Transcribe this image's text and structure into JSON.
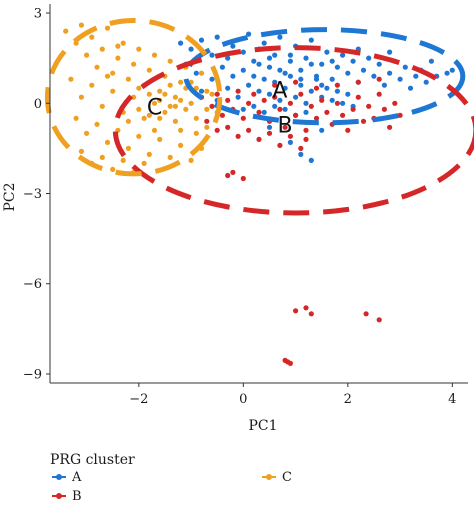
{
  "chart_data": {
    "type": "scatter",
    "xlabel": "PC1",
    "ylabel": "PC2",
    "xlim": [
      -3.7,
      4.3
    ],
    "ylim": [
      -9.3,
      3.3
    ],
    "xticks": [
      -2,
      0,
      2,
      4
    ],
    "yticks": [
      3,
      0,
      -3,
      -6,
      -9
    ],
    "xtick_labels": [
      "−2",
      "0",
      "2",
      "4"
    ],
    "ytick_labels": [
      "3",
      "0",
      "−3",
      "−6",
      "−9"
    ],
    "legend": {
      "title": "PRG cluster",
      "placement": "bottom",
      "entries": [
        {
          "label": "A",
          "color": "#1f77d4"
        },
        {
          "label": "B",
          "color": "#d62728"
        },
        {
          "label": "C",
          "color": "#f0a020"
        }
      ]
    },
    "cluster_labels": [
      {
        "text": "A",
        "x": 0.7,
        "y": 0.45
      },
      {
        "text": "B",
        "x": 0.8,
        "y": -0.7
      },
      {
        "text": "C",
        "x": -1.7,
        "y": -0.1
      }
    ],
    "series": [
      {
        "name": "A",
        "color": "#1f77d4",
        "ellipse": {
          "cx": 1.55,
          "cy": 0.9,
          "rx": 2.65,
          "ry": 1.55
        },
        "points": [
          [
            -1.2,
            2.0
          ],
          [
            -1.0,
            1.8
          ],
          [
            -0.8,
            2.1
          ],
          [
            -0.6,
            1.6
          ],
          [
            -0.5,
            2.2
          ],
          [
            -0.3,
            1.5
          ],
          [
            -0.2,
            1.9
          ],
          [
            0.0,
            1.7
          ],
          [
            0.1,
            2.3
          ],
          [
            0.2,
            1.4
          ],
          [
            0.3,
            1.8
          ],
          [
            0.4,
            2.0
          ],
          [
            0.5,
            1.2
          ],
          [
            0.6,
            1.6
          ],
          [
            0.7,
            2.2
          ],
          [
            0.8,
            1.0
          ],
          [
            0.9,
            1.4
          ],
          [
            1.0,
            1.9
          ],
          [
            1.1,
            1.1
          ],
          [
            1.2,
            1.5
          ],
          [
            1.3,
            2.1
          ],
          [
            1.4,
            0.9
          ],
          [
            1.5,
            1.3
          ],
          [
            1.6,
            1.7
          ],
          [
            1.7,
            0.8
          ],
          [
            1.8,
            1.2
          ],
          [
            1.9,
            1.6
          ],
          [
            2.0,
            1.0
          ],
          [
            2.1,
            1.4
          ],
          [
            2.2,
            0.7
          ],
          [
            2.3,
            1.1
          ],
          [
            2.4,
            1.5
          ],
          [
            2.5,
            0.9
          ],
          [
            2.6,
            1.3
          ],
          [
            2.7,
            0.6
          ],
          [
            2.8,
            1.0
          ],
          [
            2.9,
            1.4
          ],
          [
            3.0,
            0.8
          ],
          [
            3.1,
            1.2
          ],
          [
            3.2,
            0.5
          ],
          [
            3.3,
            0.9
          ],
          [
            3.4,
            1.1
          ],
          [
            3.5,
            0.7
          ],
          [
            3.7,
            0.9
          ],
          [
            3.9,
            1.0
          ],
          [
            4.0,
            1.1
          ],
          [
            -0.4,
            1.2
          ],
          [
            -0.2,
            0.9
          ],
          [
            0.0,
            1.1
          ],
          [
            0.1,
            0.6
          ],
          [
            0.2,
            0.9
          ],
          [
            0.3,
            0.4
          ],
          [
            0.4,
            0.8
          ],
          [
            0.5,
            0.3
          ],
          [
            0.6,
            0.7
          ],
          [
            0.7,
            0.1
          ],
          [
            0.8,
            0.5
          ],
          [
            0.9,
            0.9
          ],
          [
            1.0,
            0.2
          ],
          [
            1.1,
            0.6
          ],
          [
            1.2,
            0.0
          ],
          [
            1.3,
            0.4
          ],
          [
            1.4,
            0.8
          ],
          [
            1.5,
            0.2
          ],
          [
            1.6,
            0.5
          ],
          [
            1.7,
            0.1
          ],
          [
            1.8,
            0.4
          ],
          [
            1.9,
            0.0
          ],
          [
            2.0,
            0.3
          ],
          [
            2.1,
            -0.1
          ],
          [
            -0.6,
            0.8
          ],
          [
            -0.8,
            0.4
          ],
          [
            -0.5,
            0.1
          ],
          [
            -0.3,
            0.5
          ],
          [
            -0.1,
            0.2
          ],
          [
            0.0,
            -0.2
          ],
          [
            0.2,
            -0.1
          ],
          [
            0.4,
            -0.3
          ],
          [
            0.6,
            -0.1
          ],
          [
            0.8,
            -0.2
          ],
          [
            1.0,
            -0.4
          ],
          [
            1.2,
            -0.3
          ],
          [
            0.3,
            1.3
          ],
          [
            0.5,
            1.5
          ],
          [
            0.7,
            1.1
          ],
          [
            0.9,
            1.6
          ],
          [
            1.1,
            0.8
          ],
          [
            1.3,
            1.3
          ],
          [
            1.5,
            0.6
          ],
          [
            1.7,
            1.4
          ],
          [
            -1.1,
            1.3
          ],
          [
            -0.9,
            1.0
          ],
          [
            0.9,
            -1.3
          ],
          [
            1.1,
            -1.7
          ],
          [
            1.3,
            -1.9
          ],
          [
            0.5,
            -0.8
          ],
          [
            1.5,
            -0.9
          ],
          [
            2.2,
            1.8
          ],
          [
            2.8,
            1.7
          ],
          [
            3.6,
            1.4
          ]
        ]
      },
      {
        "name": "B",
        "color": "#d62728",
        "ellipse": {
          "cx": 1.0,
          "cy": -0.9,
          "rx": 3.45,
          "ry": 2.75
        },
        "points": [
          [
            -0.8,
            0.2
          ],
          [
            -0.6,
            -0.1
          ],
          [
            -0.5,
            0.3
          ],
          [
            -0.4,
            -0.4
          ],
          [
            -0.3,
            0.1
          ],
          [
            -0.2,
            -0.2
          ],
          [
            -0.1,
            0.4
          ],
          [
            0.0,
            -0.5
          ],
          [
            0.1,
            0.0
          ],
          [
            0.2,
            0.3
          ],
          [
            0.3,
            -0.3
          ],
          [
            0.4,
            0.1
          ],
          [
            0.5,
            -0.6
          ],
          [
            0.6,
            0.2
          ],
          [
            0.7,
            -0.2
          ],
          [
            0.8,
            -0.8
          ],
          [
            0.9,
            0.0
          ],
          [
            1.0,
            -0.4
          ],
          [
            1.1,
            0.3
          ],
          [
            1.2,
            -0.9
          ],
          [
            1.3,
            -0.1
          ],
          [
            1.4,
            -0.5
          ],
          [
            1.5,
            0.1
          ],
          [
            1.6,
            -0.3
          ],
          [
            1.7,
            -0.7
          ],
          [
            1.8,
            0.0
          ],
          [
            1.9,
            -0.4
          ],
          [
            2.0,
            -0.9
          ],
          [
            2.1,
            -0.2
          ],
          [
            2.2,
            0.2
          ],
          [
            2.3,
            -0.6
          ],
          [
            2.4,
            -0.1
          ],
          [
            2.5,
            -0.5
          ],
          [
            2.6,
            0.3
          ],
          [
            2.7,
            -0.2
          ],
          [
            2.8,
            -0.8
          ],
          [
            2.9,
            0.0
          ],
          [
            3.0,
            -0.4
          ],
          [
            -0.7,
            -0.6
          ],
          [
            -0.5,
            -0.9
          ],
          [
            -0.3,
            -0.8
          ],
          [
            -0.1,
            -1.1
          ],
          [
            0.1,
            -0.9
          ],
          [
            0.3,
            -1.2
          ],
          [
            0.5,
            -1.0
          ],
          [
            0.7,
            -1.4
          ],
          [
            0.9,
            -1.1
          ],
          [
            1.1,
            -1.5
          ],
          [
            -0.2,
            -2.3
          ],
          [
            0.0,
            -2.5
          ],
          [
            -0.3,
            -2.4
          ],
          [
            1.2,
            -1.2
          ],
          [
            0.6,
            0.6
          ],
          [
            1.0,
            0.7
          ],
          [
            1.4,
            0.5
          ],
          [
            1.8,
            0.6
          ],
          [
            2.2,
            0.7
          ],
          [
            2.6,
            0.8
          ],
          [
            1.2,
            -6.8
          ],
          [
            1.0,
            -6.9
          ],
          [
            1.3,
            -7.0
          ],
          [
            2.35,
            -7.0
          ],
          [
            2.6,
            -7.2
          ],
          [
            0.8,
            -8.55
          ],
          [
            0.85,
            -8.6
          ],
          [
            0.9,
            -8.65
          ]
        ]
      },
      {
        "name": "C",
        "color": "#f0a020",
        "ellipse": {
          "cx": -2.1,
          "cy": 0.2,
          "rx": 1.65,
          "ry": 2.55
        },
        "points": [
          [
            -3.4,
            2.4
          ],
          [
            -3.2,
            2.0
          ],
          [
            -3.1,
            2.6
          ],
          [
            -3.0,
            1.6
          ],
          [
            -2.9,
            2.2
          ],
          [
            -2.8,
            1.2
          ],
          [
            -2.7,
            1.8
          ],
          [
            -2.6,
            2.5
          ],
          [
            -2.5,
            1.0
          ],
          [
            -2.4,
            1.5
          ],
          [
            -2.3,
            2.0
          ],
          [
            -2.2,
            0.8
          ],
          [
            -2.1,
            1.3
          ],
          [
            -2.0,
            1.8
          ],
          [
            -1.9,
            0.6
          ],
          [
            -1.8,
            1.1
          ],
          [
            -1.7,
            1.6
          ],
          [
            -1.6,
            0.4
          ],
          [
            -1.5,
            0.9
          ],
          [
            -1.4,
            1.4
          ],
          [
            -1.3,
            0.2
          ],
          [
            -1.2,
            0.7
          ],
          [
            -1.1,
            1.2
          ],
          [
            -1.0,
            0.0
          ],
          [
            -0.9,
            0.5
          ],
          [
            -0.8,
            1.0
          ],
          [
            -0.7,
            -0.2
          ],
          [
            -0.6,
            0.3
          ],
          [
            -3.3,
            0.8
          ],
          [
            -3.1,
            0.2
          ],
          [
            -2.9,
            0.6
          ],
          [
            -2.7,
            -0.1
          ],
          [
            -2.5,
            0.4
          ],
          [
            -2.3,
            -0.3
          ],
          [
            -2.1,
            0.2
          ],
          [
            -1.9,
            -0.5
          ],
          [
            -1.7,
            0.0
          ],
          [
            -1.5,
            -0.3
          ],
          [
            -1.3,
            -0.6
          ],
          [
            -1.1,
            -0.2
          ],
          [
            -0.9,
            -0.5
          ],
          [
            -0.7,
            -0.8
          ],
          [
            -3.2,
            -0.5
          ],
          [
            -3.0,
            -1.0
          ],
          [
            -2.8,
            -0.7
          ],
          [
            -2.6,
            -1.3
          ],
          [
            -2.4,
            -0.9
          ],
          [
            -2.2,
            -1.5
          ],
          [
            -2.0,
            -1.1
          ],
          [
            -1.8,
            -1.7
          ],
          [
            -1.6,
            -1.2
          ],
          [
            -1.4,
            -1.8
          ],
          [
            -1.2,
            -1.4
          ],
          [
            -1.0,
            -1.9
          ],
          [
            -0.8,
            -1.5
          ],
          [
            -3.1,
            -1.6
          ],
          [
            -2.9,
            -2.0
          ],
          [
            -2.7,
            -1.8
          ],
          [
            -2.5,
            -2.2
          ],
          [
            -2.3,
            -1.9
          ],
          [
            -2.1,
            -2.3
          ],
          [
            -1.9,
            -2.0
          ],
          [
            -1.7,
            -0.9
          ],
          [
            -1.5,
            0.3
          ],
          [
            -1.3,
            -0.1
          ],
          [
            -1.1,
            0.5
          ],
          [
            -0.9,
            -1.0
          ],
          [
            -0.7,
            0.4
          ],
          [
            -0.5,
            -0.3
          ],
          [
            -2.6,
            0.9
          ],
          [
            -2.4,
            1.9
          ],
          [
            -2.0,
            0.5
          ],
          [
            -1.8,
            0.3
          ],
          [
            -1.6,
            -0.5
          ],
          [
            -1.4,
            0.6
          ],
          [
            -1.2,
            -0.9
          ],
          [
            -1.0,
            0.7
          ],
          [
            -2.2,
            -0.6
          ],
          [
            -2.0,
            -0.2
          ],
          [
            -1.8,
            -0.4
          ],
          [
            -1.6,
            0.1
          ],
          [
            -1.4,
            -0.1
          ],
          [
            -1.2,
            0.1
          ]
        ]
      }
    ]
  }
}
